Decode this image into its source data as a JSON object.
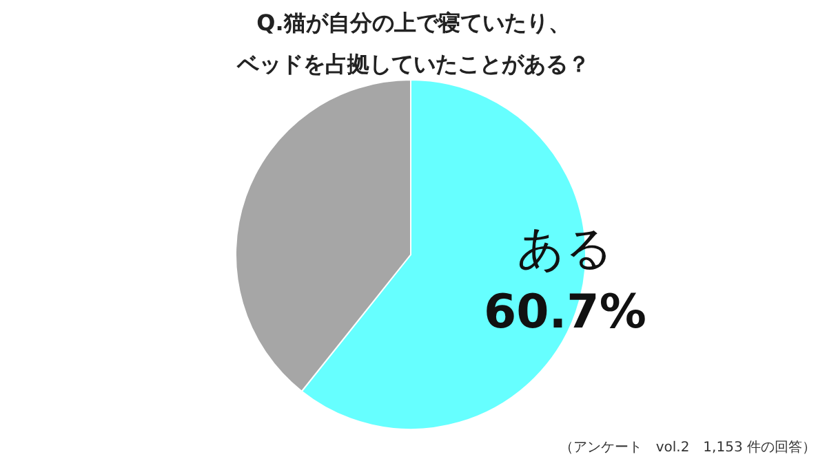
{
  "chart_data": {
    "type": "pie",
    "title": "Q.猫が自分の上で寝ていたり、",
    "subtitle": "ベッドを占拠していたことがある？",
    "categories": [
      "ある",
      null
    ],
    "values": [
      60.7,
      39.3
    ],
    "colors": [
      "#66ffff",
      "#a6a6a6"
    ],
    "value_labels": [
      "60.7%",
      null
    ],
    "annotations": [
      "（アンケート　vol.2　1,153 件の回答）"
    ]
  }
}
